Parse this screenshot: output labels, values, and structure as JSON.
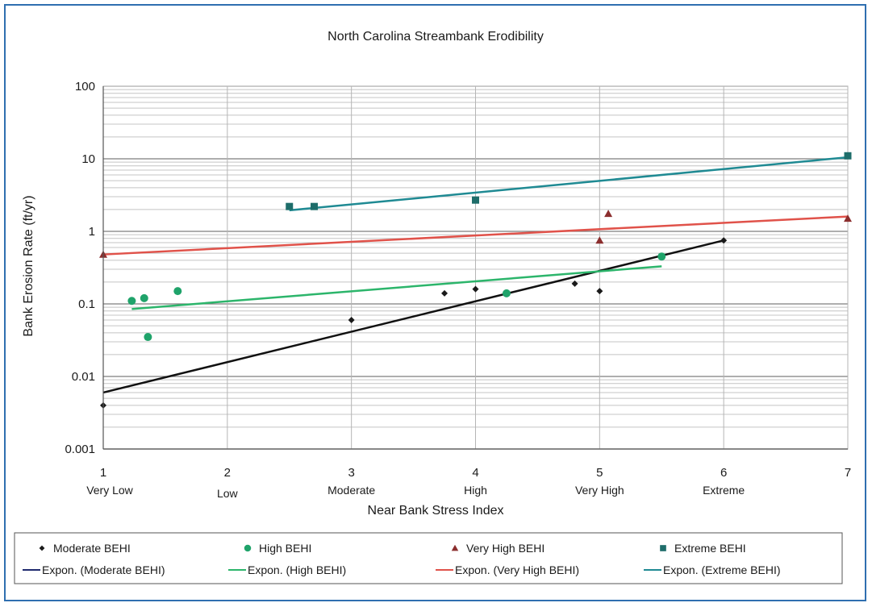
{
  "chart_data": {
    "type": "scatter",
    "title": "North Carolina Streambank Erodibility",
    "xlabel": "Near Bank Stress Index",
    "ylabel": "Bank Erosion Rate (ft/yr)",
    "y_scale": "log",
    "xlim": [
      1,
      7
    ],
    "ylim": [
      0.001,
      100
    ],
    "x_ticks": [
      1,
      2,
      3,
      4,
      5,
      6,
      7
    ],
    "x_tick_labels": [
      "1",
      "2",
      "3",
      "4",
      "5",
      "6",
      "7"
    ],
    "x_category_labels": [
      {
        "x": 1,
        "label": "Very Low"
      },
      {
        "x": 2,
        "label": "Low"
      },
      {
        "x": 3,
        "label": "Moderate"
      },
      {
        "x": 4,
        "label": "High"
      },
      {
        "x": 5,
        "label": "Very High"
      },
      {
        "x": 6,
        "label": "Extreme"
      }
    ],
    "y_ticks": [
      0.001,
      0.01,
      0.1,
      1,
      10,
      100
    ],
    "y_tick_labels": [
      "0.001",
      "0.01",
      "0.1",
      "1",
      "10",
      "100"
    ],
    "grid": true,
    "legend_position": "bottom",
    "series": [
      {
        "name": "Moderate BEHI",
        "marker": "diamond",
        "color": "#1a1a1a",
        "points": [
          [
            1,
            0.004
          ],
          [
            3,
            0.06
          ],
          [
            3.75,
            0.14
          ],
          [
            4,
            0.16
          ],
          [
            4.8,
            0.19
          ],
          [
            5,
            0.15
          ],
          [
            6,
            0.75
          ]
        ]
      },
      {
        "name": "High BEHI",
        "marker": "circle",
        "color": "#1fa36a",
        "points": [
          [
            1.23,
            0.11
          ],
          [
            1.33,
            0.12
          ],
          [
            1.36,
            0.035
          ],
          [
            1.6,
            0.15
          ],
          [
            4.25,
            0.14
          ],
          [
            5.5,
            0.45
          ]
        ]
      },
      {
        "name": "Very High BEHI",
        "marker": "triangle",
        "color": "#8b2e2e",
        "points": [
          [
            1,
            0.48
          ],
          [
            5,
            0.75
          ],
          [
            5.07,
            1.75
          ],
          [
            7,
            1.5
          ]
        ]
      },
      {
        "name": "Extreme BEHI",
        "marker": "square",
        "color": "#1e6d6a",
        "points": [
          [
            2.5,
            2.2
          ],
          [
            2.7,
            2.2
          ],
          [
            4,
            2.7
          ],
          [
            7,
            11
          ]
        ]
      }
    ],
    "trendlines": [
      {
        "name": "Expon. (Moderate BEHI)",
        "color": "#111111",
        "legend_color": "#1f2a6e",
        "x_range": [
          1,
          6
        ],
        "y_range": [
          0.006,
          0.75
        ]
      },
      {
        "name": "Expon. (High BEHI)",
        "color": "#2cb56b",
        "legend_color": "#2cb56b",
        "x_range": [
          1.23,
          5.5
        ],
        "y_range": [
          0.085,
          0.33
        ]
      },
      {
        "name": "Expon. (Very High BEHI)",
        "color": "#e0524a",
        "legend_color": "#e0524a",
        "x_range": [
          1,
          7
        ],
        "y_range": [
          0.48,
          1.6
        ]
      },
      {
        "name": "Expon. (Extreme BEHI)",
        "color": "#1f8a93",
        "legend_color": "#1f8a93",
        "x_range": [
          2.5,
          7
        ],
        "y_range": [
          1.95,
          10.5
        ]
      }
    ]
  }
}
